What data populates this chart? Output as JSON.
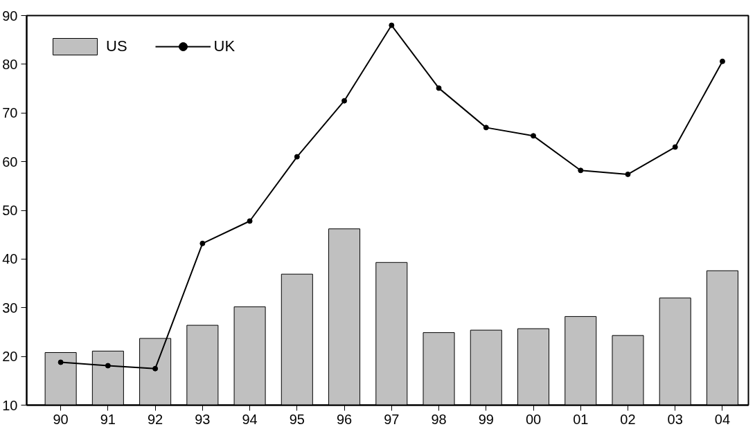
{
  "chart_data": {
    "type": "bar",
    "categories": [
      "90",
      "91",
      "92",
      "93",
      "94",
      "95",
      "96",
      "97",
      "98",
      "99",
      "00",
      "01",
      "02",
      "03",
      "04"
    ],
    "series": [
      {
        "name": "US",
        "color": "#c0c0c0",
        "values": [
          20.8,
          21.1,
          23.7,
          26.4,
          30.2,
          36.9,
          46.2,
          39.3,
          24.9,
          25.4,
          25.7,
          28.2,
          24.3,
          32.0,
          37.6
        ]
      },
      {
        "name": "UK",
        "type": "line",
        "color": "#000000",
        "marker": "circle",
        "values": [
          18.8,
          18.1,
          17.5,
          43.2,
          47.8,
          61.0,
          72.5,
          88.0,
          75.1,
          67.0,
          65.3,
          58.2,
          57.4,
          63.0,
          80.6
        ]
      }
    ],
    "ylim": [
      10,
      90
    ],
    "yticks": [
      10,
      20,
      30,
      40,
      50,
      60,
      70,
      80,
      90
    ],
    "grid": false,
    "legend": "top left"
  }
}
